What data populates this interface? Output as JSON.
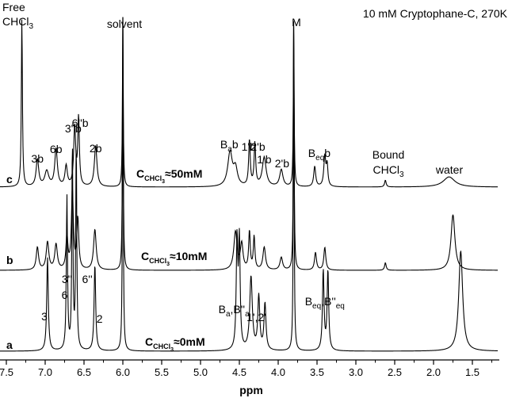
{
  "chart_data": {
    "type": "line",
    "title": "10 mM Cryptophane-C, 270K",
    "xlabel": "ppm",
    "ylabel": "",
    "xlim": [
      7.5,
      1.25
    ],
    "x_reversed": true,
    "x_ticks": [
      "7.5",
      "7.0",
      "6.5",
      "6.0",
      "5.5",
      "5.0",
      "4.5",
      "4.0",
      "3.5",
      "3.0",
      "2.5",
      "2.0",
      "1.5"
    ],
    "grid": false,
    "series": [
      {
        "name": "c",
        "concentration": {
          "main": "C",
          "sub": "CHCl",
          "subsub": "3",
          "value": "≈50mM"
        },
        "peaks": [
          {
            "ppm": 7.3,
            "height": 1.0,
            "width": 0.008
          },
          {
            "ppm": 6.98,
            "height": 0.09,
            "width": 0.03
          },
          {
            "ppm": 7.1,
            "height": 0.16,
            "width": 0.02
          },
          {
            "ppm": 6.86,
            "height": 0.22,
            "width": 0.02
          },
          {
            "ppm": 6.73,
            "height": 0.12,
            "width": 0.018
          },
          {
            "ppm": 6.62,
            "height": 0.35,
            "width": 0.015
          },
          {
            "ppm": 6.57,
            "height": 0.4,
            "width": 0.012
          },
          {
            "ppm": 6.35,
            "height": 0.24,
            "width": 0.02
          },
          {
            "ppm": 6.0,
            "height": 1.0,
            "width": 0.006
          },
          {
            "ppm": 4.62,
            "height": 0.2,
            "width": 0.035
          },
          {
            "ppm": 4.55,
            "height": 0.1,
            "width": 0.03
          },
          {
            "ppm": 4.37,
            "height": 0.27,
            "width": 0.012
          },
          {
            "ppm": 4.3,
            "height": 0.25,
            "width": 0.012
          },
          {
            "ppm": 4.18,
            "height": 0.17,
            "width": 0.03
          },
          {
            "ppm": 3.96,
            "height": 0.1,
            "width": 0.025
          },
          {
            "ppm": 3.8,
            "height": 1.0,
            "width": 0.006
          },
          {
            "ppm": 3.53,
            "height": 0.12,
            "width": 0.015
          },
          {
            "ppm": 3.4,
            "height": 0.18,
            "width": 0.015
          },
          {
            "ppm": 3.37,
            "height": 0.12,
            "width": 0.012
          },
          {
            "ppm": 2.62,
            "height": 0.04,
            "width": 0.012
          },
          {
            "ppm": 1.8,
            "height": 0.06,
            "width": 0.09
          }
        ]
      },
      {
        "name": "b",
        "concentration": {
          "main": "C",
          "sub": "CHCl",
          "subsub": "3",
          "value": "≈10mM"
        },
        "peaks": [
          {
            "ppm": 6.0,
            "height": 1.0,
            "width": 0.006
          },
          {
            "ppm": 7.1,
            "height": 0.09,
            "width": 0.018
          },
          {
            "ppm": 6.97,
            "height": 0.11,
            "width": 0.02
          },
          {
            "ppm": 6.86,
            "height": 0.1,
            "width": 0.02
          },
          {
            "ppm": 6.72,
            "height": 0.13,
            "width": 0.015
          },
          {
            "ppm": 6.65,
            "height": 0.31,
            "width": 0.015
          },
          {
            "ppm": 6.58,
            "height": 0.2,
            "width": 0.015
          },
          {
            "ppm": 6.36,
            "height": 0.16,
            "width": 0.02
          },
          {
            "ppm": 4.55,
            "height": 0.15,
            "width": 0.025
          },
          {
            "ppm": 4.47,
            "height": 0.1,
            "width": 0.02
          },
          {
            "ppm": 4.37,
            "height": 0.15,
            "width": 0.012
          },
          {
            "ppm": 4.31,
            "height": 0.13,
            "width": 0.012
          },
          {
            "ppm": 4.18,
            "height": 0.09,
            "width": 0.02
          },
          {
            "ppm": 3.96,
            "height": 0.05,
            "width": 0.02
          },
          {
            "ppm": 3.8,
            "height": 1.0,
            "width": 0.006
          },
          {
            "ppm": 3.52,
            "height": 0.07,
            "width": 0.015
          },
          {
            "ppm": 3.4,
            "height": 0.09,
            "width": 0.015
          },
          {
            "ppm": 2.62,
            "height": 0.03,
            "width": 0.012
          },
          {
            "ppm": 1.75,
            "height": 0.22,
            "width": 0.03
          }
        ]
      },
      {
        "name": "a",
        "concentration": {
          "main": "C",
          "sub": "CHCl",
          "subsub": "3",
          "value": "≈0mM"
        },
        "peaks": [
          {
            "ppm": 6.0,
            "height": 1.0,
            "width": 0.006
          },
          {
            "ppm": 6.97,
            "height": 0.28,
            "width": 0.012
          },
          {
            "ppm": 6.72,
            "height": 0.46,
            "width": 0.009
          },
          {
            "ppm": 6.65,
            "height": 0.62,
            "width": 0.008
          },
          {
            "ppm": 6.6,
            "height": 0.62,
            "width": 0.008
          },
          {
            "ppm": 6.36,
            "height": 0.26,
            "width": 0.012
          },
          {
            "ppm": 4.53,
            "height": 0.32,
            "width": 0.012
          },
          {
            "ppm": 4.5,
            "height": 0.32,
            "width": 0.012
          },
          {
            "ppm": 4.35,
            "height": 0.22,
            "width": 0.02
          },
          {
            "ppm": 4.25,
            "height": 0.16,
            "width": 0.015
          },
          {
            "ppm": 4.17,
            "height": 0.14,
            "width": 0.015
          },
          {
            "ppm": 3.8,
            "height": 1.0,
            "width": 0.006
          },
          {
            "ppm": 3.42,
            "height": 0.24,
            "width": 0.012
          },
          {
            "ppm": 3.36,
            "height": 0.24,
            "width": 0.012
          },
          {
            "ppm": 1.65,
            "height": 0.3,
            "width": 0.03
          }
        ]
      }
    ],
    "annotations": {
      "free_chcl3": [
        "Free",
        "CHCl",
        "3"
      ],
      "solvent": "solvent",
      "M": "M",
      "bound_chcl3": [
        "Bound",
        "CHCl",
        "3"
      ],
      "water": "water",
      "c_peaks": [
        {
          "text": "3b",
          "ppm": 7.1
        },
        {
          "text": "6b",
          "ppm": 6.86
        },
        {
          "text": "3''b",
          "ppm": 6.64
        },
        {
          "text": "6''b",
          "ppm": 6.55
        },
        {
          "text": "2b",
          "ppm": 6.35
        },
        {
          "text": "1'b",
          "ppm": 4.38
        },
        {
          "text": "2'b",
          "ppm": 4.26
        },
        {
          "text": "1'b",
          "ppm": 4.18
        },
        {
          "text": "2'b",
          "ppm": 3.95
        }
      ],
      "c_Bab": {
        "main": "B",
        "sub": "a",
        "after": "b",
        "ppm": 4.63
      },
      "c_Beqb": {
        "main": "B",
        "sub": "eq",
        "after": "b",
        "ppm": 3.47
      },
      "a_peaks": [
        {
          "text": "3",
          "ppm": 7.01
        },
        {
          "text": "6",
          "ppm": 6.75
        },
        {
          "text": "3''",
          "ppm": 6.72
        },
        {
          "text": "6''",
          "ppm": 6.55
        },
        {
          "text": "2",
          "ppm": 6.3
        },
        {
          "text": "1',2'",
          "ppm": 4.28
        }
      ],
      "a_Ba": {
        "B": "B",
        "sub": "a",
        "mid": ",B''",
        "sub2": "a",
        "ppm": 4.57
      },
      "a_Beq": {
        "B": "B",
        "sub": "eq",
        "mid": ",B''",
        "sub2": "eq",
        "ppm": 3.4
      }
    }
  }
}
